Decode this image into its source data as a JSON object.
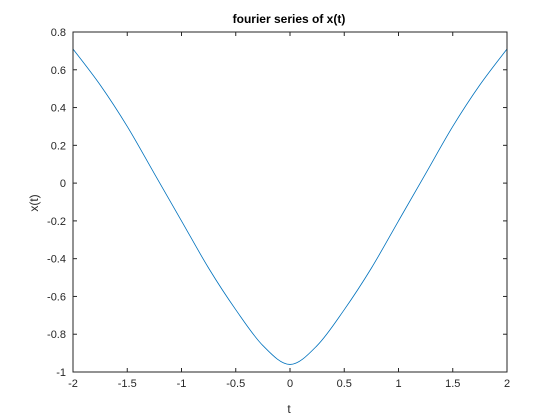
{
  "chart_data": {
    "type": "line",
    "title": "fourier series of x(t)",
    "xlabel": "t",
    "ylabel": "x(t)",
    "xlim": [
      -2,
      2
    ],
    "ylim": [
      -1,
      0.8
    ],
    "xticks": [
      -2,
      -1.5,
      -1,
      -0.5,
      0,
      0.5,
      1,
      1.5,
      2
    ],
    "xtick_labels": [
      "-2",
      "-1.5",
      "-1",
      "-0.5",
      "0",
      "0.5",
      "1",
      "1.5",
      "2"
    ],
    "yticks": [
      -1,
      -0.8,
      -0.6,
      -0.4,
      -0.2,
      0,
      0.2,
      0.4,
      0.6,
      0.8
    ],
    "ytick_labels": [
      "-1",
      "-0.8",
      "-0.6",
      "-0.4",
      "-0.2",
      "0",
      "0.2",
      "0.4",
      "0.6",
      "0.8"
    ],
    "grid": false,
    "series": [
      {
        "color": "#0072BD",
        "x": [
          -2,
          -1.75,
          -1.5,
          -1.25,
          -1,
          -0.75,
          -0.5,
          -0.25,
          0,
          0.25,
          0.5,
          0.75,
          1,
          1.25,
          1.5,
          1.75,
          2
        ],
        "y": [
          0.71,
          0.52,
          0.3,
          0.05,
          -0.2,
          -0.45,
          -0.67,
          -0.86,
          -0.96,
          -0.86,
          -0.67,
          -0.45,
          -0.2,
          0.05,
          0.3,
          0.52,
          0.71
        ]
      }
    ]
  }
}
